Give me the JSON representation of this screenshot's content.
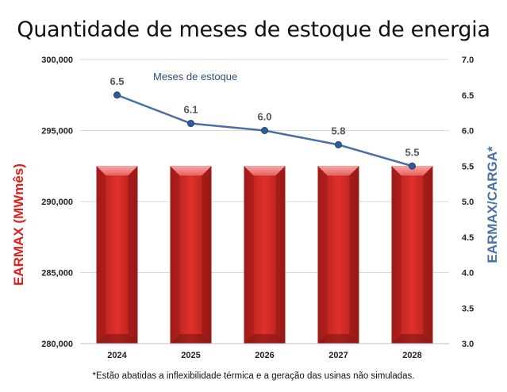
{
  "title": "Quantidade de meses de estoque de energia",
  "footnote": "*Estão abatidas a inflexibilidade térmica e a geração das usinas não simuladas.",
  "chart_data": {
    "type": "bar+line",
    "categories": [
      "2024",
      "2025",
      "2026",
      "2027",
      "2028"
    ],
    "bars": {
      "axis": "left",
      "values": [
        292500,
        292500,
        292500,
        292500,
        292500
      ],
      "color": "#c9302c"
    },
    "line": {
      "axis": "right",
      "name": "Meses de estoque",
      "values": [
        6.5,
        6.1,
        6.0,
        5.8,
        5.5
      ],
      "labels": [
        "6.5",
        "6.1",
        "6.0",
        "5.8",
        "5.5"
      ],
      "color": "#4a6fa5"
    },
    "left_axis": {
      "label": "EARMAX (MWmês)",
      "color": "#e0201b",
      "ylim": [
        280000,
        300000
      ],
      "ticks": [
        280000,
        285000,
        290000,
        295000,
        300000
      ],
      "tick_labels": [
        "280,000",
        "285,000",
        "290,000",
        "295,000",
        "300,000"
      ]
    },
    "right_axis": {
      "label": "EARMAX/CARGA*",
      "color": "#4a6fa5",
      "ylim": [
        3.0,
        7.0
      ],
      "ticks": [
        3.0,
        3.5,
        4.0,
        4.5,
        5.0,
        5.5,
        6.0,
        6.5,
        7.0
      ],
      "tick_labels": [
        "3.0",
        "3.5",
        "4.0",
        "4.5",
        "5.0",
        "5.5",
        "6.0",
        "6.5",
        "7.0"
      ]
    },
    "grid": true
  }
}
